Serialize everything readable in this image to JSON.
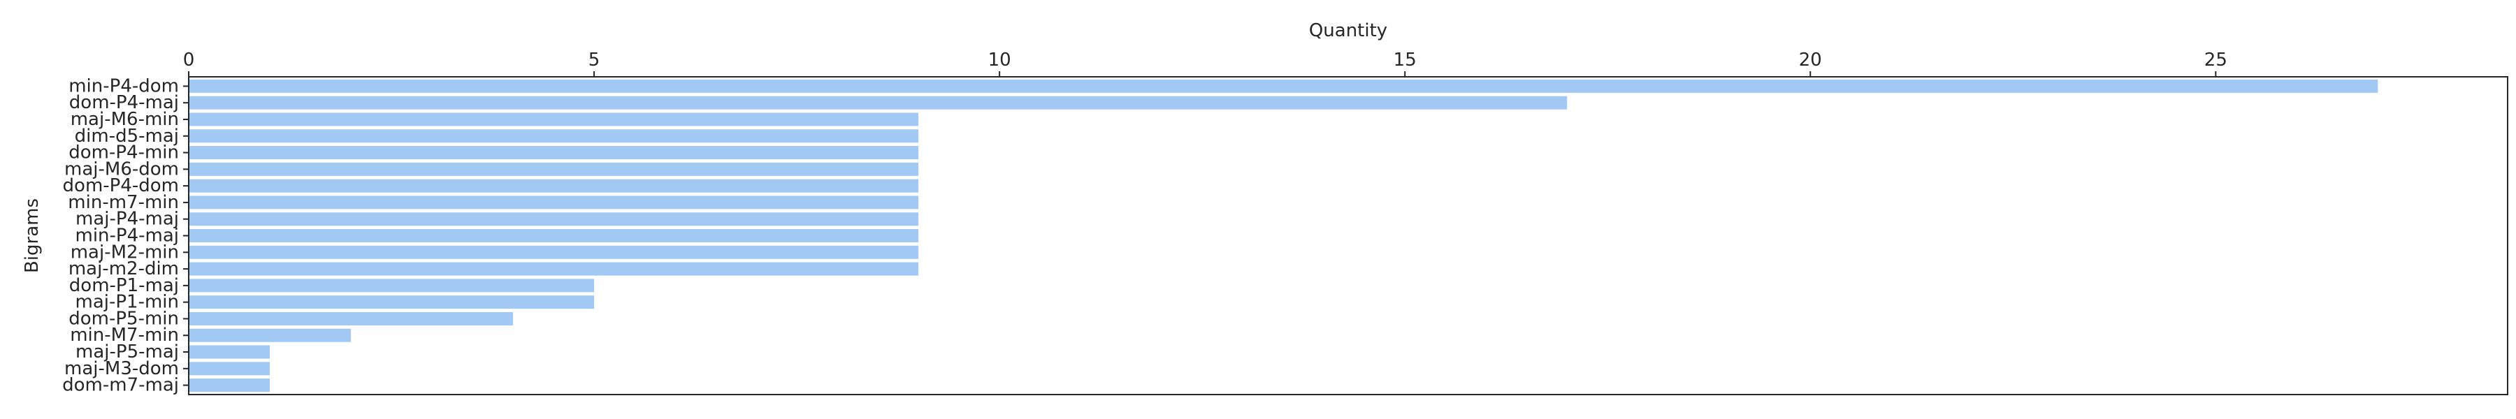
{
  "chart_data": {
    "type": "bar",
    "orientation": "horizontal",
    "xlabel": "Quantity",
    "ylabel": "Bigrams",
    "xlim": [
      0,
      28.6
    ],
    "x_ticks": [
      0,
      5,
      10,
      15,
      20,
      25
    ],
    "x_tick_labels": [
      "0",
      "5",
      "10",
      "15",
      "20",
      "25"
    ],
    "x_axis_position": "top",
    "grid": false,
    "bar_color": "#a1c9f4",
    "categories": [
      "min-P4-dom",
      "dom-P4-maj",
      "maj-M6-min",
      "dim-d5-maj",
      "dom-P4-min",
      "maj-M6-dom",
      "dom-P4-dom",
      "min-m7-min",
      "maj-P4-maj",
      "min-P4-maj",
      "maj-M2-min",
      "maj-m2-dim",
      "dom-P1-maj",
      "maj-P1-min",
      "dom-P5-min",
      "min-M7-min",
      "maj-P5-maj",
      "maj-M3-dom",
      "dom-m7-maj"
    ],
    "values": [
      27,
      17,
      9,
      9,
      9,
      9,
      9,
      9,
      9,
      9,
      9,
      9,
      5,
      5,
      4,
      2,
      1,
      1,
      1
    ]
  }
}
